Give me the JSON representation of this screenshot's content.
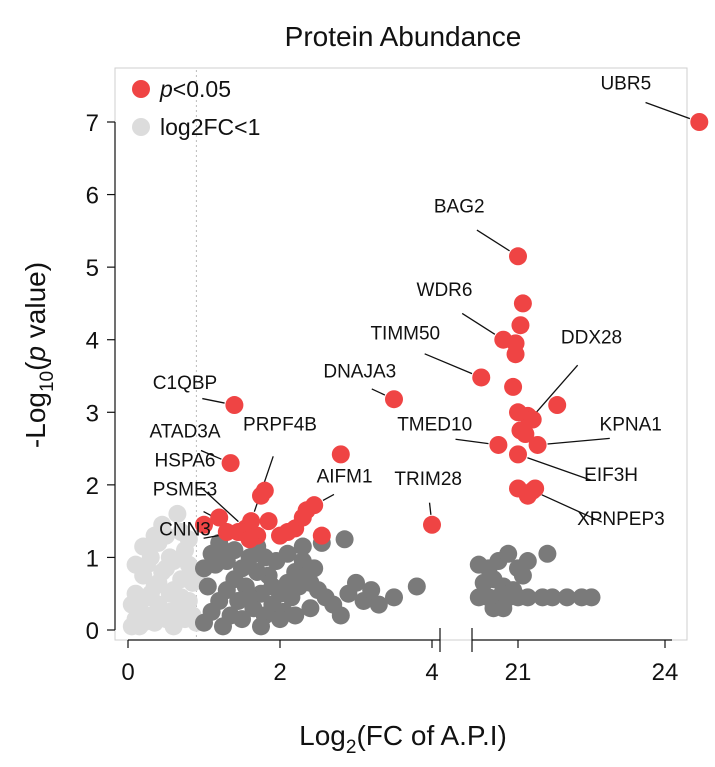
{
  "chart_data": {
    "type": "scatter",
    "title": "Protein Abundance",
    "xlabel": {
      "base": "Log",
      "sub": "2",
      "rest": "(FC of A.P.I)"
    },
    "ylabel": {
      "base": "-Log",
      "sub": "10",
      "rest": "(",
      "italic": "p",
      "rest2": " value)"
    },
    "legend": {
      "position": "top-left",
      "items": [
        {
          "name_italic": "p",
          "name_rest": "<0.05",
          "color": "#ef4444"
        },
        {
          "name_italic": "",
          "name_rest": "log2FC<1",
          "color": "#dcdcdc"
        }
      ]
    },
    "colors": {
      "significant": "#ef4444",
      "insignificant_fc": "#dcdcdc",
      "other": "#7a7a7a"
    },
    "x_axis": {
      "broken": true,
      "segments": [
        {
          "range": [
            0,
            4
          ],
          "ticks": [
            0,
            2,
            4
          ],
          "tick_labels": [
            "0",
            "2",
            "4"
          ]
        },
        {
          "range": [
            19,
            25
          ],
          "ticks": [
            21,
            24
          ],
          "tick_labels": [
            "21",
            "24"
          ]
        }
      ],
      "threshold_line": 0.9
    },
    "y_axis": {
      "range": [
        0,
        7.5
      ],
      "ticks": [
        0,
        1,
        2,
        3,
        4,
        5,
        6,
        7
      ],
      "tick_labels": [
        "0",
        "1",
        "2",
        "3",
        "4",
        "5",
        "6",
        "7"
      ]
    },
    "grid": false,
    "significant_points": [
      {
        "x": 24.7,
        "y": 7.0,
        "label": "UBR5",
        "tx": 23.2,
        "ty": 7.45,
        "anchor": "middle"
      },
      {
        "x": 21.0,
        "y": 5.15,
        "label": "BAG2",
        "tx": 19.8,
        "ty": 5.75,
        "anchor": "middle"
      },
      {
        "x": 20.7,
        "y": 4.0,
        "label": "WDR6",
        "tx": 19.5,
        "ty": 4.6,
        "anchor": "middle"
      },
      {
        "x": 20.25,
        "y": 3.48,
        "label": "TIMM50",
        "tx": 18.7,
        "ty": 4.0,
        "anchor": "middle"
      },
      {
        "x": 3.5,
        "y": 3.18,
        "label": "DNAJA3",
        "tx": 3.05,
        "ty": 3.48,
        "anchor": "middle"
      },
      {
        "x": 21.05,
        "y": 2.75,
        "label": "DDX28",
        "tx": 22.5,
        "ty": 3.95,
        "anchor": "middle"
      },
      {
        "x": 1.4,
        "y": 3.1,
        "label": "C1QBP",
        "tx": 0.75,
        "ty": 3.32,
        "anchor": "middle"
      },
      {
        "x": 21.4,
        "y": 2.55,
        "label": "KPNA1",
        "tx": 23.3,
        "ty": 2.75,
        "anchor": "middle"
      },
      {
        "x": 20.6,
        "y": 2.55,
        "label": "TMED10",
        "tx": 19.3,
        "ty": 2.75,
        "anchor": "middle"
      },
      {
        "x": 21.0,
        "y": 2.42,
        "label": "EIF3H",
        "tx": 22.9,
        "ty": 2.05,
        "anchor": "middle"
      },
      {
        "x": 2.45,
        "y": 1.72,
        "label": "AIFM1",
        "tx": 2.85,
        "ty": 2.03,
        "anchor": "middle"
      },
      {
        "x": 4.0,
        "y": 1.45,
        "label": "TRIM28",
        "tx": 3.95,
        "ty": 2.0,
        "anchor": "middle"
      },
      {
        "x": 21.3,
        "y": 1.92,
        "label": "XPNPEP3",
        "tx": 23.1,
        "ty": 1.45,
        "anchor": "middle"
      },
      {
        "x": 1.62,
        "y": 1.5,
        "label": "PRPF4B",
        "tx": 2.0,
        "ty": 2.75,
        "anchor": "middle"
      },
      {
        "x": 1.35,
        "y": 2.3,
        "label": "ATAD3A",
        "tx": 0.75,
        "ty": 2.65,
        "anchor": "middle"
      },
      {
        "x": 1.55,
        "y": 1.4,
        "label": "HSPA6",
        "tx": 0.75,
        "ty": 2.25,
        "anchor": "middle"
      },
      {
        "x": 1.5,
        "y": 1.35,
        "label": "PSME3",
        "tx": 0.75,
        "ty": 1.85,
        "anchor": "middle"
      },
      {
        "x": 1.45,
        "y": 1.35,
        "label": "CNN3",
        "tx": 0.75,
        "ty": 1.3,
        "anchor": "middle"
      },
      {
        "x": 2.8,
        "y": 2.42
      },
      {
        "x": 1.8,
        "y": 1.92
      },
      {
        "x": 1.75,
        "y": 1.85
      },
      {
        "x": 2.2,
        "y": 1.4
      },
      {
        "x": 2.3,
        "y": 1.55
      },
      {
        "x": 2.35,
        "y": 1.65
      },
      {
        "x": 2.1,
        "y": 1.35
      },
      {
        "x": 1.85,
        "y": 1.5
      },
      {
        "x": 1.7,
        "y": 1.3
      },
      {
        "x": 2.55,
        "y": 1.3
      },
      {
        "x": 1.0,
        "y": 1.45
      },
      {
        "x": 1.2,
        "y": 1.55
      },
      {
        "x": 1.3,
        "y": 1.35
      },
      {
        "x": 1.6,
        "y": 1.25
      },
      {
        "x": 2.0,
        "y": 1.3
      },
      {
        "x": 21.1,
        "y": 4.5
      },
      {
        "x": 21.05,
        "y": 4.2
      },
      {
        "x": 20.95,
        "y": 3.95
      },
      {
        "x": 20.95,
        "y": 3.8
      },
      {
        "x": 20.9,
        "y": 3.35
      },
      {
        "x": 21.2,
        "y": 2.95
      },
      {
        "x": 21.0,
        "y": 3.0
      },
      {
        "x": 21.3,
        "y": 2.9
      },
      {
        "x": 21.8,
        "y": 3.1
      },
      {
        "x": 21.15,
        "y": 2.7
      },
      {
        "x": 21.0,
        "y": 1.95
      },
      {
        "x": 21.2,
        "y": 1.85
      },
      {
        "x": 21.35,
        "y": 1.95
      }
    ],
    "insignificant_fc_points": [
      [
        0.05,
        0.05
      ],
      [
        0.1,
        0.15
      ],
      [
        0.15,
        0.3
      ],
      [
        0.2,
        0.1
      ],
      [
        0.25,
        0.45
      ],
      [
        0.3,
        0.2
      ],
      [
        0.35,
        0.6
      ],
      [
        0.4,
        0.35
      ],
      [
        0.45,
        0.8
      ],
      [
        0.5,
        0.15
      ],
      [
        0.55,
        0.5
      ],
      [
        0.6,
        0.95
      ],
      [
        0.65,
        0.3
      ],
      [
        0.7,
        0.7
      ],
      [
        0.75,
        1.1
      ],
      [
        0.8,
        0.4
      ],
      [
        0.85,
        0.2
      ],
      [
        0.1,
        0.5
      ],
      [
        0.2,
        0.75
      ],
      [
        0.3,
        1.0
      ],
      [
        0.4,
        1.2
      ],
      [
        0.5,
        0.85
      ],
      [
        0.6,
        0.55
      ],
      [
        0.7,
        1.35
      ],
      [
        0.8,
        0.9
      ],
      [
        0.15,
        0.05
      ],
      [
        0.35,
        0.1
      ],
      [
        0.55,
        0.25
      ],
      [
        0.75,
        0.15
      ],
      [
        0.45,
        1.45
      ],
      [
        0.65,
        1.6
      ],
      [
        0.25,
        0.9
      ],
      [
        0.5,
        1.3
      ],
      [
        0.85,
        0.65
      ],
      [
        0.05,
        0.35
      ],
      [
        0.3,
        0.5
      ],
      [
        0.6,
        0.05
      ],
      [
        0.7,
        0.45
      ],
      [
        0.8,
        1.25
      ],
      [
        0.4,
        0.65
      ],
      [
        0.55,
        1.0
      ],
      [
        0.2,
        1.15
      ],
      [
        0.9,
        0.1
      ],
      [
        0.9,
        0.75
      ],
      [
        0.1,
        0.9
      ],
      [
        0.35,
        1.3
      ]
    ],
    "other_points": [
      [
        1.0,
        0.1
      ],
      [
        1.1,
        0.25
      ],
      [
        1.2,
        0.4
      ],
      [
        1.3,
        0.55
      ],
      [
        1.4,
        0.7
      ],
      [
        1.5,
        0.85
      ],
      [
        1.6,
        1.0
      ],
      [
        1.7,
        1.15
      ],
      [
        1.8,
        0.2
      ],
      [
        1.9,
        0.35
      ],
      [
        2.0,
        0.5
      ],
      [
        2.1,
        0.65
      ],
      [
        2.2,
        0.8
      ],
      [
        2.3,
        0.95
      ],
      [
        2.4,
        0.3
      ],
      [
        2.5,
        0.55
      ],
      [
        1.05,
        0.6
      ],
      [
        1.15,
        0.9
      ],
      [
        1.25,
        1.1
      ],
      [
        1.35,
        0.2
      ],
      [
        1.45,
        0.4
      ],
      [
        1.55,
        0.6
      ],
      [
        1.65,
        0.3
      ],
      [
        1.75,
        0.5
      ],
      [
        1.85,
        0.75
      ],
      [
        1.95,
        0.95
      ],
      [
        2.05,
        0.25
      ],
      [
        2.15,
        0.45
      ],
      [
        2.25,
        0.6
      ],
      [
        2.35,
        0.75
      ],
      [
        2.6,
        0.45
      ],
      [
        2.7,
        0.35
      ],
      [
        2.45,
        0.85
      ],
      [
        1.0,
        0.85
      ],
      [
        1.1,
        1.05
      ],
      [
        1.2,
        1.2
      ],
      [
        1.3,
        0.95
      ],
      [
        1.4,
        1.1
      ],
      [
        1.5,
        0.15
      ],
      [
        1.6,
        0.45
      ],
      [
        1.7,
        0.8
      ],
      [
        1.8,
        1.0
      ],
      [
        1.9,
        0.6
      ],
      [
        2.0,
        0.15
      ],
      [
        2.1,
        1.05
      ],
      [
        2.2,
        0.2
      ],
      [
        2.3,
        1.15
      ],
      [
        2.4,
        0.65
      ],
      [
        2.9,
        0.5
      ],
      [
        3.0,
        0.65
      ],
      [
        3.1,
        0.4
      ],
      [
        3.3,
        0.35
      ],
      [
        3.5,
        0.45
      ],
      [
        3.8,
        0.6
      ],
      [
        2.8,
        0.2
      ],
      [
        3.2,
        0.55
      ],
      [
        2.55,
        1.2
      ],
      [
        2.85,
        1.25
      ],
      [
        1.25,
        0.05
      ],
      [
        1.75,
        0.05
      ],
      [
        20.2,
        0.9
      ],
      [
        20.4,
        0.85
      ],
      [
        20.6,
        0.95
      ],
      [
        20.8,
        1.05
      ],
      [
        21.0,
        0.85
      ],
      [
        21.2,
        0.95
      ],
      [
        21.6,
        1.05
      ],
      [
        20.3,
        0.65
      ],
      [
        20.5,
        0.7
      ],
      [
        20.7,
        0.6
      ],
      [
        20.9,
        0.55
      ],
      [
        21.1,
        0.75
      ],
      [
        20.2,
        0.45
      ],
      [
        20.4,
        0.45
      ],
      [
        20.6,
        0.45
      ],
      [
        20.8,
        0.45
      ],
      [
        21.0,
        0.45
      ],
      [
        21.2,
        0.45
      ],
      [
        21.5,
        0.45
      ],
      [
        21.7,
        0.45
      ],
      [
        22.0,
        0.45
      ],
      [
        22.3,
        0.45
      ],
      [
        22.5,
        0.45
      ],
      [
        20.5,
        0.3
      ],
      [
        20.7,
        0.3
      ]
    ]
  }
}
